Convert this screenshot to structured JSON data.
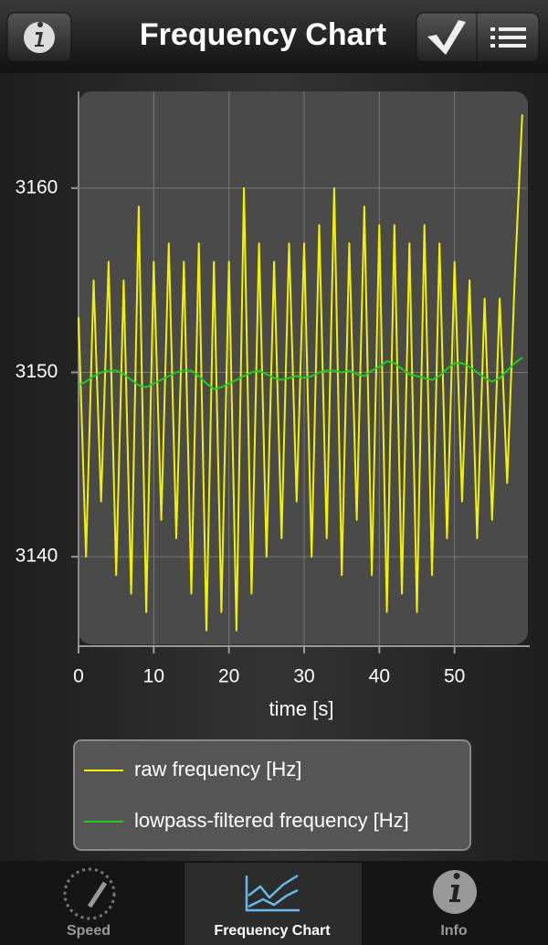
{
  "nav": {
    "title": "Frequency Chart"
  },
  "chart_data": {
    "type": "line",
    "x": [
      0,
      1,
      2,
      3,
      4,
      5,
      6,
      7,
      8,
      9,
      10,
      11,
      12,
      13,
      14,
      15,
      16,
      17,
      18,
      19,
      20,
      21,
      22,
      23,
      24,
      25,
      26,
      27,
      28,
      29,
      30,
      31,
      32,
      33,
      34,
      35,
      36,
      37,
      38,
      39,
      40,
      41,
      42,
      43,
      44,
      45,
      46,
      47,
      48,
      49,
      50,
      51,
      52,
      53,
      54,
      55,
      56,
      57,
      58,
      59
    ],
    "series": [
      {
        "name": "raw frequency [Hz]",
        "color": "#f2f200",
        "values": [
          3153,
          3140,
          3155,
          3143,
          3156,
          3139,
          3155,
          3138,
          3159,
          3137,
          3156,
          3142,
          3157,
          3141,
          3156,
          3138,
          3157,
          3136,
          3156,
          3137,
          3156,
          3136,
          3160,
          3138,
          3157,
          3140,
          3156,
          3141,
          3157,
          3143,
          3157,
          3140,
          3158,
          3141,
          3160,
          3139,
          3157,
          3142,
          3159,
          3139,
          3158,
          3137,
          3158,
          3138,
          3157,
          3137,
          3158,
          3139,
          3157,
          3141,
          3156,
          3143,
          3155,
          3141,
          3154,
          3142,
          3154,
          3144,
          3155,
          3164
        ]
      },
      {
        "name": "lowpass-filtered frequency [Hz]",
        "color": "#22cc22",
        "values": [
          3149.3,
          3149.5,
          3149.8,
          3150.0,
          3150.1,
          3150.1,
          3149.9,
          3149.6,
          3149.3,
          3149.2,
          3149.4,
          3149.6,
          3149.8,
          3150.0,
          3150.1,
          3150.1,
          3149.8,
          3149.4,
          3149.1,
          3149.2,
          3149.4,
          3149.6,
          3149.8,
          3150.0,
          3150.1,
          3149.9,
          3149.7,
          3149.6,
          3149.7,
          3149.8,
          3149.7,
          3149.8,
          3150.0,
          3150.1,
          3150.1,
          3150.0,
          3150.1,
          3149.9,
          3149.8,
          3150.1,
          3150.3,
          3150.6,
          3150.5,
          3150.2,
          3149.9,
          3149.8,
          3149.7,
          3149.6,
          3149.8,
          3150.2,
          3150.5,
          3150.5,
          3150.3,
          3150.0,
          3149.7,
          3149.5,
          3149.7,
          3150.1,
          3150.5,
          3150.8
        ]
      }
    ],
    "xlabel": "time [s]",
    "xlim": [
      0,
      60
    ],
    "xticks": [
      0,
      10,
      20,
      30,
      40,
      50
    ],
    "ylim": [
      3135,
      3165
    ],
    "yticks": [
      3140,
      3150,
      3160
    ],
    "grid": true
  },
  "tabs": [
    "Speed",
    "Frequency Chart",
    "Info"
  ]
}
